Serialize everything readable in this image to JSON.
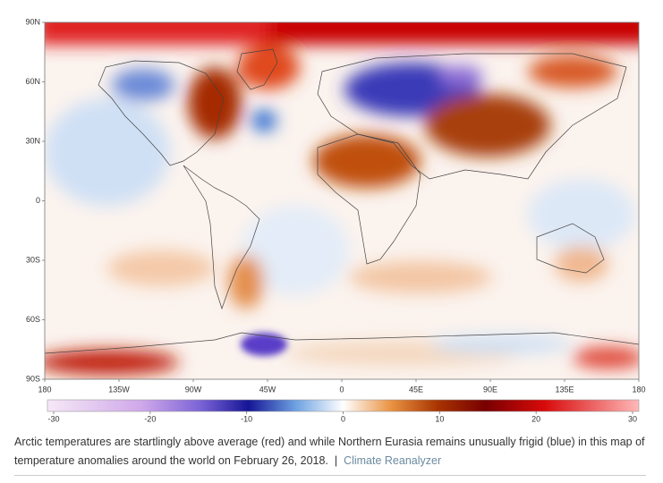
{
  "map": {
    "lat_ticks": [
      {
        "value": 90,
        "label": "90N"
      },
      {
        "value": 60,
        "label": "60N"
      },
      {
        "value": 30,
        "label": "30N"
      },
      0,
      {
        "value": -30,
        "label": "30S"
      },
      {
        "value": -60,
        "label": "60S"
      },
      {
        "value": -90,
        "label": "90S"
      }
    ],
    "lon_ticks": [
      {
        "value": -180,
        "label": "180"
      },
      {
        "value": -135,
        "label": "135W"
      },
      {
        "value": -90,
        "label": "90W"
      },
      {
        "value": -45,
        "label": "45W"
      },
      0,
      {
        "value": 45,
        "label": "45E"
      },
      {
        "value": 90,
        "label": "90E"
      },
      {
        "value": 135,
        "label": "135E"
      },
      180
    ],
    "colorbar_ticks": [
      -30,
      -20,
      -10,
      0,
      10,
      20,
      30
    ]
  },
  "caption": {
    "text": "Arctic temperatures are startlingly above average (red) and while Northern Eurasia remains unusually frigid (blue) in this map of temperature anomalies around the world on February 26, 2018.",
    "separator": "|",
    "credit": "Climate Reanalyzer"
  }
}
